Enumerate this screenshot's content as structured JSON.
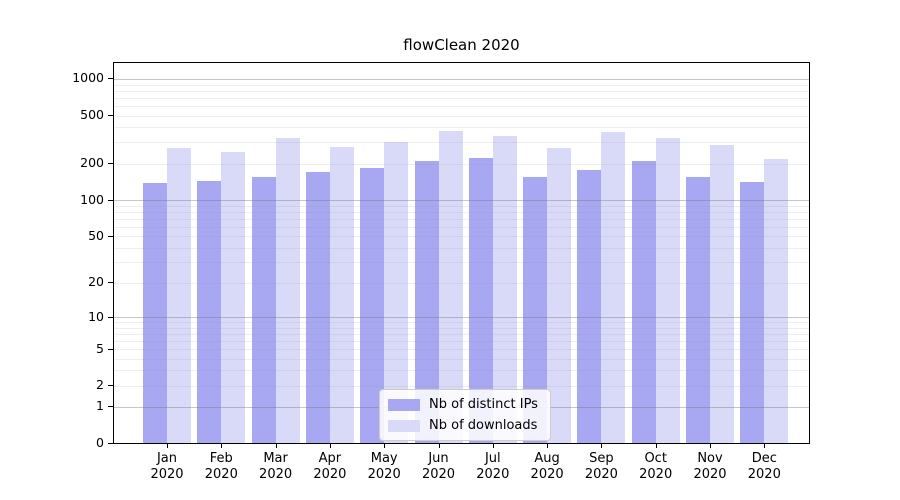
{
  "title": "flowClean 2020",
  "chart_data": {
    "type": "bar",
    "title": "flowClean 2020",
    "x_categories": [
      "Jan 2020",
      "Feb 2020",
      "Mar 2020",
      "Apr 2020",
      "May 2020",
      "Jun 2020",
      "Jul 2020",
      "Aug 2020",
      "Sep 2020",
      "Oct 2020",
      "Nov 2020",
      "Dec 2020"
    ],
    "months": [
      "Jan",
      "Feb",
      "Mar",
      "Apr",
      "May",
      "Jun",
      "Jul",
      "Aug",
      "Sep",
      "Oct",
      "Nov",
      "Dec"
    ],
    "year": "2020",
    "series": [
      {
        "name": "Nb of distinct IPs",
        "color": "#a7a7f2",
        "values": [
          138,
          143,
          154,
          170,
          183,
          207,
          222,
          154,
          176,
          207,
          155,
          140
        ]
      },
      {
        "name": "Nb of downloads",
        "color": "#d9d9f8",
        "values": [
          269,
          247,
          323,
          271,
          299,
          369,
          336,
          268,
          362,
          324,
          283,
          216
        ]
      }
    ],
    "y_scale": "log(1+x)",
    "y_ticks": [
      0,
      1,
      2,
      5,
      10,
      20,
      50,
      100,
      200,
      500,
      1000
    ],
    "ylim": [
      0,
      1390
    ],
    "grid": true,
    "legend_position": "bottom-center"
  },
  "legend": {
    "items": [
      {
        "label": "Nb of distinct IPs",
        "color": "#a7a7f2"
      },
      {
        "label": "Nb of downloads",
        "color": "#d9d9f8"
      }
    ]
  },
  "colors": {
    "background": "#ffffff",
    "bar_ips": "#a7a7f2",
    "bar_downloads": "#d9d9f8",
    "grid_major": "#c3c3c3",
    "grid_minor": "#e9e9e9",
    "axis": "#000000"
  }
}
